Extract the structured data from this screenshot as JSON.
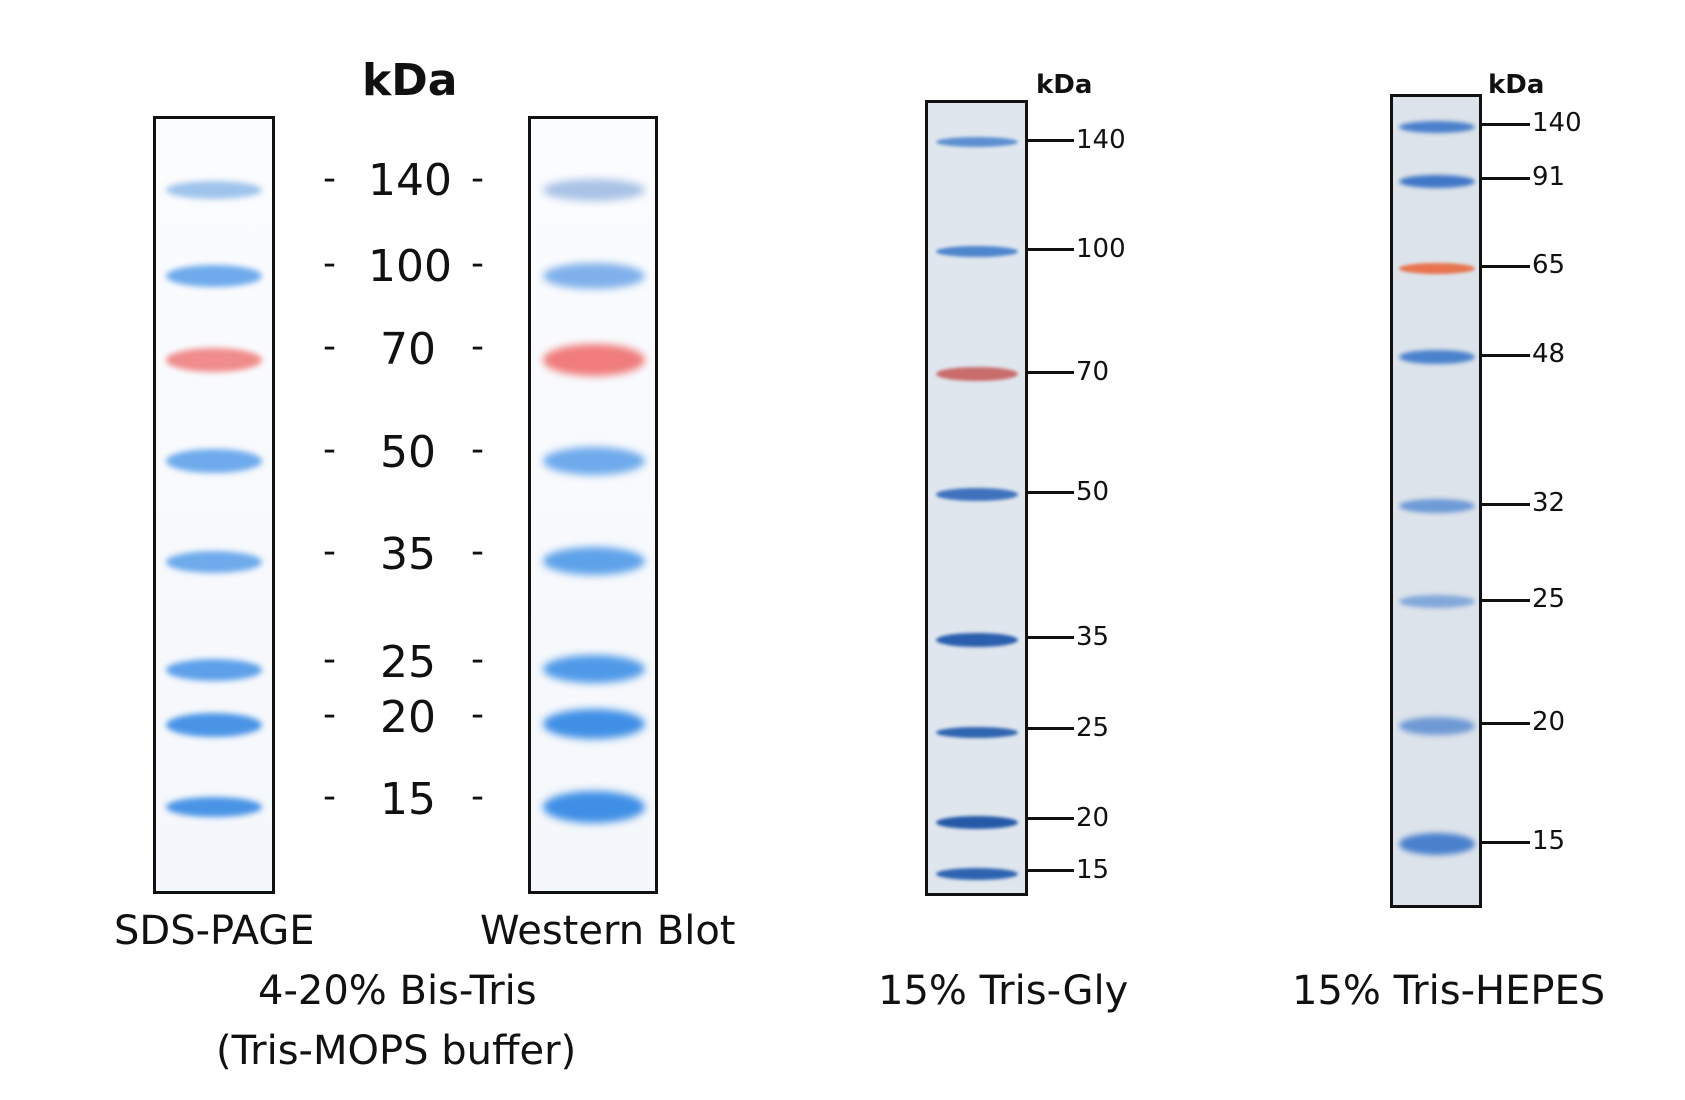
{
  "panel1": {
    "kda_label": "kDa",
    "markers": [
      "140",
      "100",
      "70",
      "50",
      "35",
      "25",
      "20",
      "15"
    ],
    "dash": "-",
    "lane_left_label": "SDS-PAGE",
    "lane_right_label": "Western Blot",
    "caption_line1": "4-20%  Bis-Tris",
    "caption_line2": "(Tris-MOPS buffer)"
  },
  "panel2": {
    "kda_label": "kDa",
    "markers": [
      "140",
      "100",
      "70",
      "50",
      "35",
      "25",
      "20",
      "15"
    ],
    "caption": "15% Tris-Gly"
  },
  "panel3": {
    "kda_label": "kDa",
    "markers": [
      "140",
      "91",
      "65",
      "48",
      "32",
      "25",
      "20",
      "15"
    ],
    "caption": "15% Tris-HEPES"
  },
  "colors": {
    "blue_band": "#4f9ee6",
    "red_band": "#ee6b6b",
    "dark_blue_band": "#2a62b5",
    "orange_band": "#e8744f"
  }
}
